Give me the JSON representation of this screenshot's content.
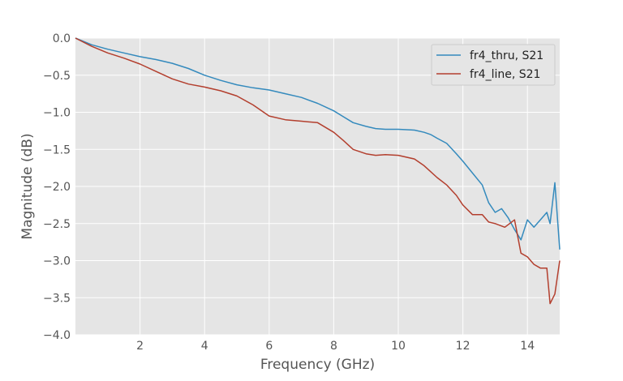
{
  "chart_data": {
    "type": "line",
    "title": "",
    "xlabel": "Frequency (GHz)",
    "ylabel": "Magnitude (dB)",
    "xlim": [
      0,
      15
    ],
    "ylim": [
      -4.0,
      0.0
    ],
    "grid": true,
    "legend_position": "top-right",
    "x_ticks": [
      2,
      4,
      6,
      8,
      10,
      12,
      14
    ],
    "y_ticks": [
      0.0,
      -0.5,
      -1.0,
      -1.5,
      -2.0,
      -2.5,
      -3.0,
      -3.5,
      -4.0
    ],
    "x_tick_labels": [
      "2",
      "4",
      "6",
      "8",
      "10",
      "12",
      "14"
    ],
    "y_tick_labels": [
      "0.0",
      "−0.5",
      "−1.0",
      "−1.5",
      "−2.0",
      "−2.5",
      "−3.0",
      "−3.5",
      "−4.0"
    ],
    "series": [
      {
        "name": "fr4_thru, S21",
        "color": "#348abd",
        "x": [
          0.0,
          0.5,
          1.0,
          1.5,
          2.0,
          2.5,
          3.0,
          3.5,
          4.0,
          4.5,
          5.0,
          5.5,
          6.0,
          6.5,
          7.0,
          7.5,
          8.0,
          8.3,
          8.6,
          9.0,
          9.3,
          9.6,
          10.0,
          10.5,
          10.8,
          11.0,
          11.2,
          11.5,
          11.8,
          12.0,
          12.3,
          12.6,
          12.8,
          13.0,
          13.2,
          13.4,
          13.6,
          13.8,
          14.0,
          14.2,
          14.4,
          14.6,
          14.7,
          14.85,
          15.0
        ],
        "y": [
          0.0,
          -0.09,
          -0.15,
          -0.2,
          -0.25,
          -0.29,
          -0.34,
          -0.41,
          -0.5,
          -0.57,
          -0.63,
          -0.67,
          -0.7,
          -0.75,
          -0.8,
          -0.88,
          -0.98,
          -1.06,
          -1.14,
          -1.19,
          -1.22,
          -1.23,
          -1.23,
          -1.24,
          -1.27,
          -1.3,
          -1.35,
          -1.42,
          -1.56,
          -1.66,
          -1.82,
          -1.98,
          -2.22,
          -2.35,
          -2.3,
          -2.42,
          -2.58,
          -2.72,
          -2.45,
          -2.55,
          -2.45,
          -2.35,
          -2.5,
          -1.95,
          -2.85
        ]
      },
      {
        "name": "fr4_line, S21",
        "color": "#b33f2e",
        "x": [
          0.0,
          0.5,
          1.0,
          1.5,
          2.0,
          2.5,
          3.0,
          3.5,
          4.0,
          4.5,
          5.0,
          5.5,
          6.0,
          6.5,
          7.0,
          7.5,
          8.0,
          8.3,
          8.6,
          9.0,
          9.3,
          9.6,
          10.0,
          10.5,
          10.8,
          11.0,
          11.2,
          11.5,
          11.8,
          12.0,
          12.3,
          12.6,
          12.8,
          13.0,
          13.3,
          13.6,
          13.8,
          14.0,
          14.2,
          14.4,
          14.6,
          14.7,
          14.85,
          15.0
        ],
        "y": [
          0.0,
          -0.11,
          -0.2,
          -0.27,
          -0.35,
          -0.45,
          -0.55,
          -0.62,
          -0.66,
          -0.71,
          -0.78,
          -0.9,
          -1.05,
          -1.1,
          -1.12,
          -1.14,
          -1.27,
          -1.38,
          -1.5,
          -1.56,
          -1.58,
          -1.57,
          -1.58,
          -1.63,
          -1.72,
          -1.8,
          -1.88,
          -1.98,
          -2.12,
          -2.25,
          -2.38,
          -2.38,
          -2.48,
          -2.5,
          -2.55,
          -2.45,
          -2.9,
          -2.95,
          -3.05,
          -3.1,
          -3.1,
          -3.58,
          -3.45,
          -3.0
        ]
      }
    ]
  }
}
